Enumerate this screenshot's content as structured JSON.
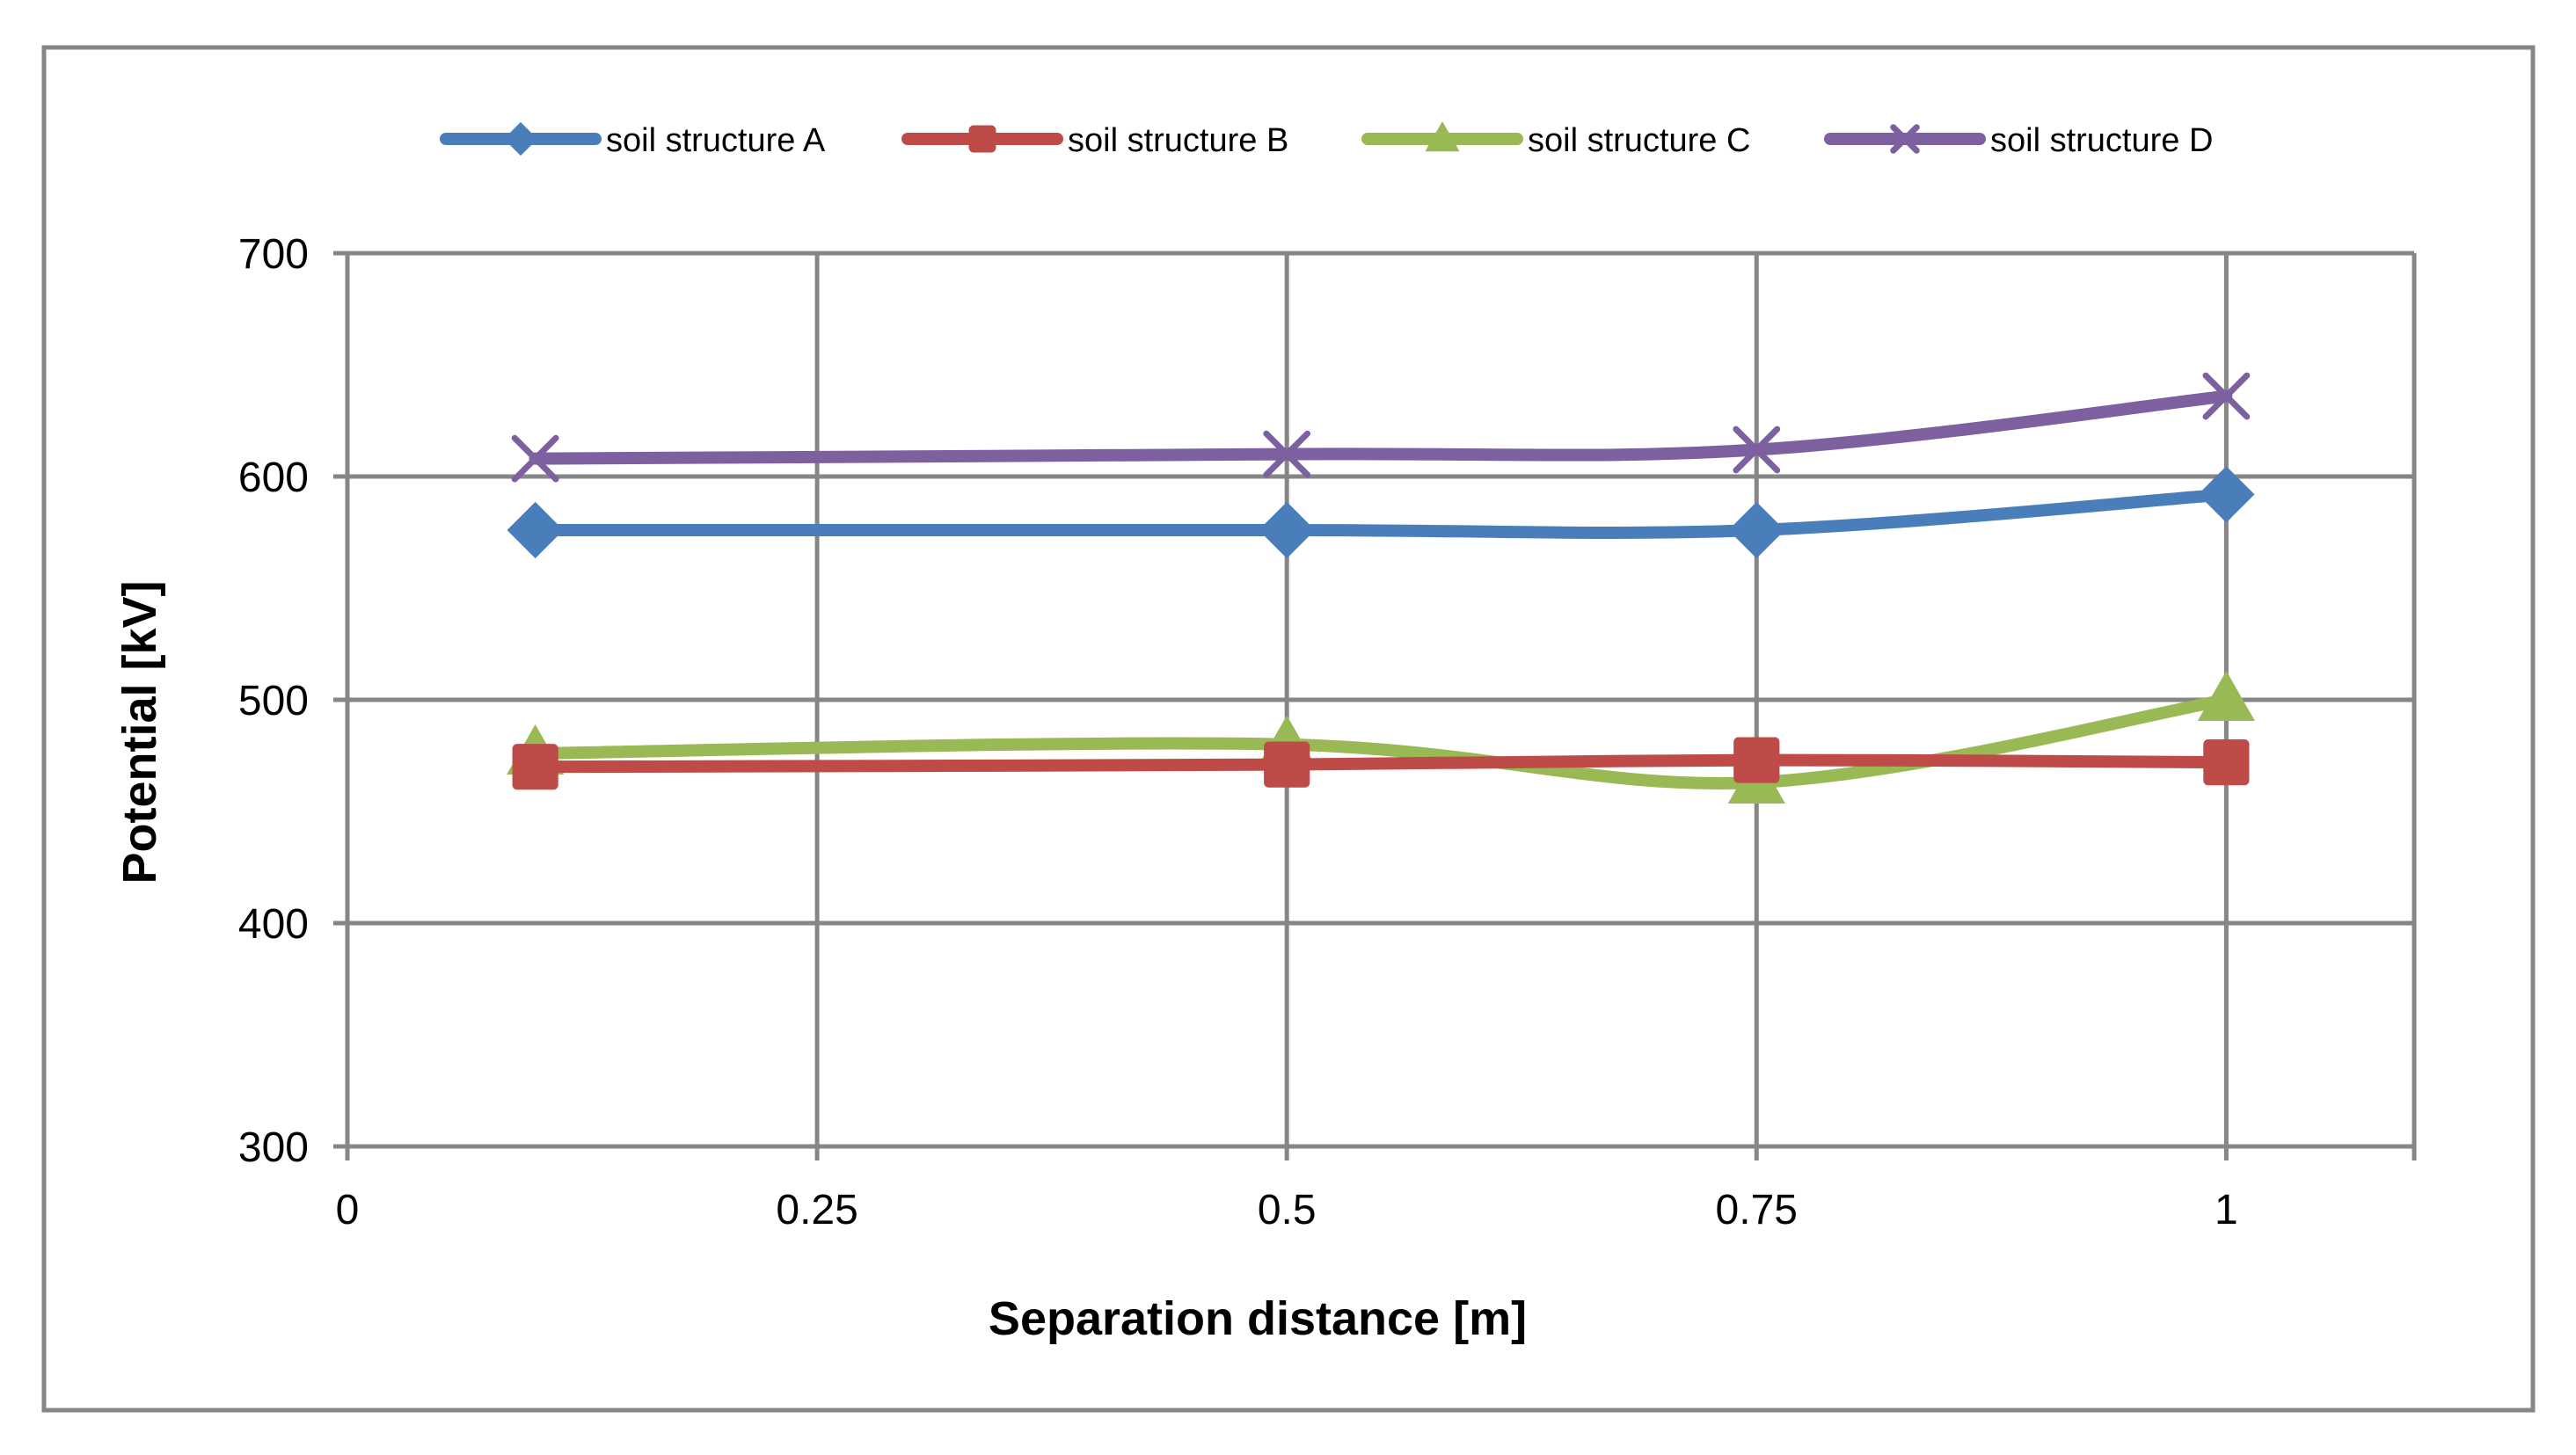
{
  "chart_data": {
    "type": "line",
    "title": "",
    "xlabel": "Separation distance [m]",
    "ylabel": "Potential [kV]",
    "xlim": [
      0,
      1.1
    ],
    "ylim": [
      300,
      700
    ],
    "x_ticks": [
      0,
      0.25,
      0.5,
      0.75,
      1
    ],
    "x_tick_labels": [
      "0",
      "0.25",
      "0.5",
      "0.75",
      "1"
    ],
    "y_ticks": [
      300,
      400,
      500,
      600,
      700
    ],
    "y_tick_labels": [
      "300",
      "400",
      "500",
      "600",
      "700"
    ],
    "grid": true,
    "legend_position": "top",
    "smooth": true,
    "x": [
      0.1,
      0.5,
      0.75,
      1.0
    ],
    "series": [
      {
        "name": "soil structure A",
        "color": "#4a7ebb",
        "marker": "diamond",
        "values": [
          576,
          576,
          576,
          592
        ]
      },
      {
        "name": "soil structure B",
        "color": "#be4b48",
        "marker": "square",
        "values": [
          470,
          471,
          473,
          472
        ]
      },
      {
        "name": "soil structure C",
        "color": "#98b954",
        "marker": "triangle",
        "values": [
          476,
          480,
          463,
          500
        ]
      },
      {
        "name": "soil structure D",
        "color": "#7d60a0",
        "marker": "x",
        "values": [
          608,
          610,
          612,
          636
        ]
      }
    ]
  }
}
